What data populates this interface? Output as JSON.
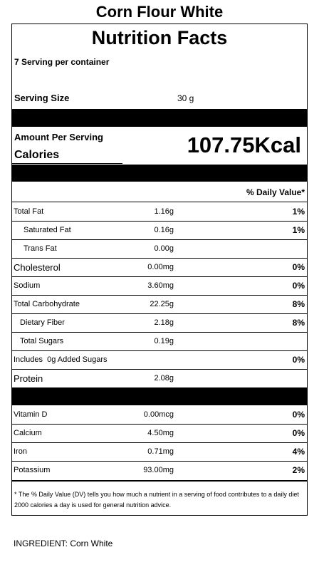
{
  "product_title": "Corn Flour White",
  "label": {
    "heading": "Nutrition Facts",
    "servings_per_container": "7 Serving per container",
    "serving_size_label": "Serving Size",
    "serving_size_value": "30 g",
    "amount_per_serving": "Amount Per Serving",
    "calories_label": "Calories",
    "calories_value": "107.75Kcal",
    "daily_value_header": "% Daily Value*"
  },
  "nutrients": [
    {
      "name": "Total Fat",
      "amount": "1.16g",
      "dv": "1%"
    },
    {
      "name": "Saturated Fat",
      "amount": "0.16g",
      "dv": "1%"
    },
    {
      "name": "Trans Fat",
      "amount": "0.00g",
      "dv": ""
    },
    {
      "name": "Cholesterol",
      "amount": "0.00mg",
      "dv": "0%"
    },
    {
      "name": "Sodium",
      "amount": "3.60mg",
      "dv": "0%"
    },
    {
      "name": "Total Carbohydrate",
      "amount": "22.25g",
      "dv": "8%"
    },
    {
      "name": "Dietary Fiber",
      "amount": "2.18g",
      "dv": "8%"
    },
    {
      "name": "Total Sugars",
      "amount": "0.19g",
      "dv": ""
    },
    {
      "name": "Includes  0g Added Sugars",
      "amount": "",
      "dv": "0%"
    },
    {
      "name": "Protein",
      "amount": "2.08g",
      "dv": ""
    }
  ],
  "vitamins": [
    {
      "name": "Vitamin D",
      "amount": "0.00mcg",
      "dv": "0%"
    },
    {
      "name": "Calcium",
      "amount": "4.50mg",
      "dv": "0%"
    },
    {
      "name": "Iron",
      "amount": "0.71mg",
      "dv": "4%"
    },
    {
      "name": "Potassium",
      "amount": "93.00mg",
      "dv": "2%"
    }
  ],
  "footnote": "* The % Daily Value (DV) tells you how much a nutrient in a serving of food contributes to a daily diet 2000 calories a day is used for general nutrition advice.",
  "ingredients": "INGREDIENT: Corn White"
}
